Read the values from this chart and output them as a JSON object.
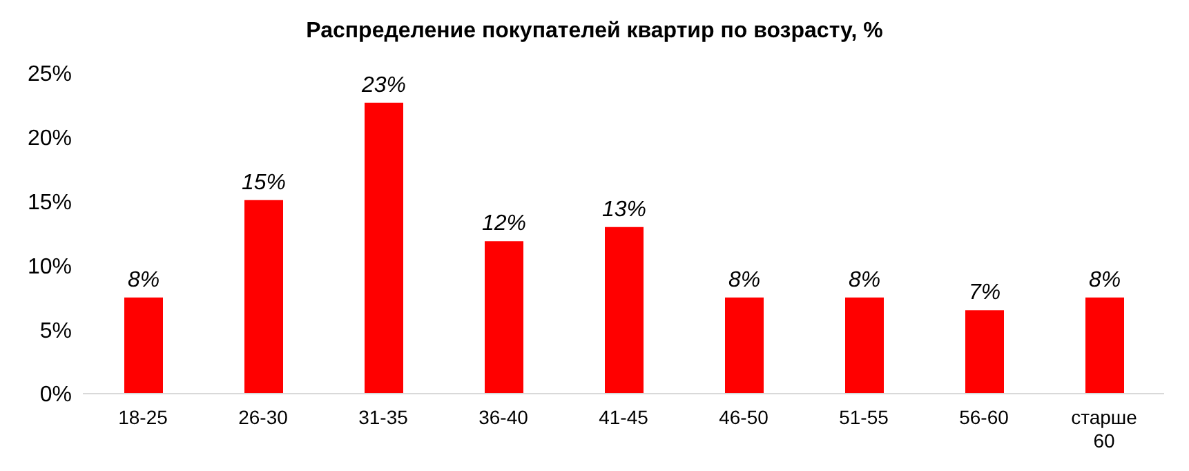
{
  "chart_data": {
    "type": "bar",
    "title": "Распределение покупателей квартир по возрасту, %",
    "categories": [
      "18-25",
      "26-30",
      "31-35",
      "36-40",
      "41-45",
      "46-50",
      "51-55",
      "56-60",
      "старше 60"
    ],
    "values": [
      7.5,
      15.1,
      22.7,
      11.9,
      13,
      7.5,
      7.5,
      6.5,
      7.5
    ],
    "value_labels": [
      "8%",
      "15%",
      "23%",
      "12%",
      "13%",
      "8%",
      "8%",
      "7%",
      "8%"
    ],
    "color": "#ff0000",
    "ylim": [
      0,
      25
    ],
    "yticks": [
      {
        "value": 0,
        "label": "0%"
      },
      {
        "value": 5,
        "label": "5%"
      },
      {
        "value": 10,
        "label": "10%"
      },
      {
        "value": 15,
        "label": "15%"
      },
      {
        "value": 20,
        "label": "20%"
      },
      {
        "value": 25,
        "label": "25%"
      }
    ],
    "grid": false,
    "legend": false
  }
}
